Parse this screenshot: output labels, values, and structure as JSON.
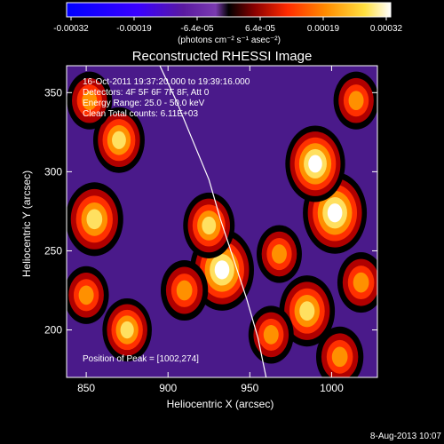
{
  "chart_data": {
    "type": "heatmap",
    "title": "Reconstructed RHESSI Image",
    "xlabel": "Heliocentric X (arcsec)",
    "ylabel": "Heliocentric Y (arcsec)",
    "xlim": [
      838,
      1028
    ],
    "ylim": [
      170,
      367
    ],
    "xticks": [
      850,
      900,
      950,
      1000
    ],
    "yticks": [
      200,
      250,
      300,
      350
    ],
    "colorbar": {
      "ticks": [
        "-0.00032",
        "-0.00019",
        "-6.4e-05",
        "6.4e-05",
        "0.00019",
        "0.00032"
      ],
      "units": "(photons cm⁻² s⁻¹ asec⁻²)",
      "range": [
        -0.00032,
        0.00032
      ]
    },
    "annotations": {
      "time": "16-Oct-2011 19:37:20.000 to 19:39:16.000",
      "detectors": "Detectors: 4F 5F 6F 7F 8F, Att 0",
      "energy": "Energy Range: 25.0 - 50.0 keV",
      "clean": "Clean     Total counts: 6.11E+03",
      "peak": "Position of Peak = [1002,274]"
    },
    "hotspots": [
      {
        "x": 933,
        "y": 238,
        "intensity": 1.0
      },
      {
        "x": 1002,
        "y": 274,
        "intensity": 1.0
      },
      {
        "x": 990,
        "y": 305,
        "intensity": 0.9
      },
      {
        "x": 855,
        "y": 270,
        "intensity": 0.85
      },
      {
        "x": 870,
        "y": 320,
        "intensity": 0.7
      },
      {
        "x": 852,
        "y": 345,
        "intensity": 0.55
      },
      {
        "x": 925,
        "y": 266,
        "intensity": 0.7
      },
      {
        "x": 910,
        "y": 225,
        "intensity": 0.6
      },
      {
        "x": 985,
        "y": 212,
        "intensity": 0.8
      },
      {
        "x": 1018,
        "y": 230,
        "intensity": 0.6
      },
      {
        "x": 963,
        "y": 197,
        "intensity": 0.55
      },
      {
        "x": 875,
        "y": 200,
        "intensity": 0.65
      },
      {
        "x": 850,
        "y": 222,
        "intensity": 0.55
      },
      {
        "x": 1005,
        "y": 183,
        "intensity": 0.6
      },
      {
        "x": 1015,
        "y": 345,
        "intensity": 0.55
      },
      {
        "x": 968,
        "y": 248,
        "intensity": 0.55
      }
    ],
    "limb_curve": [
      [
        895,
        367
      ],
      [
        905,
        345
      ],
      [
        915,
        320
      ],
      [
        925,
        295
      ],
      [
        932,
        270
      ],
      [
        940,
        245
      ],
      [
        948,
        220
      ],
      [
        955,
        195
      ],
      [
        960,
        170
      ]
    ]
  },
  "footer": {
    "date": "8-Aug-2013 10:07"
  }
}
